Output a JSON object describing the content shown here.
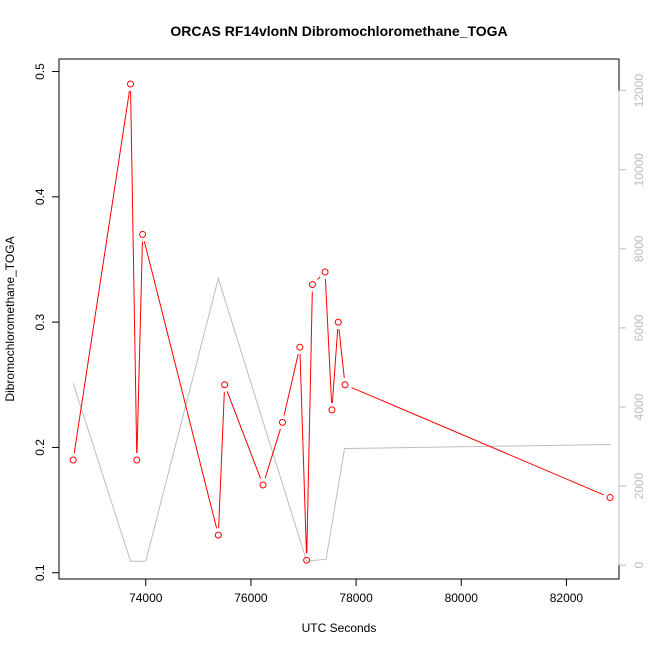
{
  "chart_data": {
    "type": "line",
    "title": "ORCAS RF14vlonN Dibromochloromethane_TOGA",
    "xlabel": "UTC Seconds",
    "ylabel": "Dibromochloromethane_TOGA",
    "xlim": [
      72350,
      83000
    ],
    "ylim": [
      0.095,
      0.51
    ],
    "y2lim": [
      -350,
      12800
    ],
    "x_ticks": [
      74000,
      76000,
      78000,
      80000,
      82000
    ],
    "y_ticks": [
      0.1,
      0.2,
      0.3,
      0.4,
      0.5
    ],
    "y2_ticks": [
      0,
      2000,
      4000,
      6000,
      8000,
      10000,
      12000
    ],
    "grid": false,
    "series": [
      {
        "color": "#ff0000",
        "style": "line-with-circles",
        "axis": "left",
        "points": [
          [
            72620,
            0.19
          ],
          [
            73710,
            0.49
          ],
          [
            73830,
            0.19
          ],
          [
            73940,
            0.37
          ],
          [
            75380,
            0.13
          ],
          [
            75500,
            0.25
          ],
          [
            76230,
            0.17
          ],
          [
            76600,
            0.22
          ],
          [
            76930,
            0.28
          ],
          [
            77060,
            0.11
          ],
          [
            77170,
            0.33
          ],
          [
            77410,
            0.34
          ],
          [
            77540,
            0.23
          ],
          [
            77660,
            0.3
          ],
          [
            77790,
            0.25
          ],
          [
            82830,
            0.16
          ]
        ]
      },
      {
        "color": "#bdbdbd",
        "style": "line",
        "axis": "right",
        "points": [
          [
            72620,
            4600
          ],
          [
            73710,
            100
          ],
          [
            74000,
            100
          ],
          [
            75380,
            7250
          ],
          [
            77060,
            100
          ],
          [
            77430,
            150
          ],
          [
            77780,
            2950
          ],
          [
            82830,
            3050
          ]
        ]
      }
    ]
  }
}
